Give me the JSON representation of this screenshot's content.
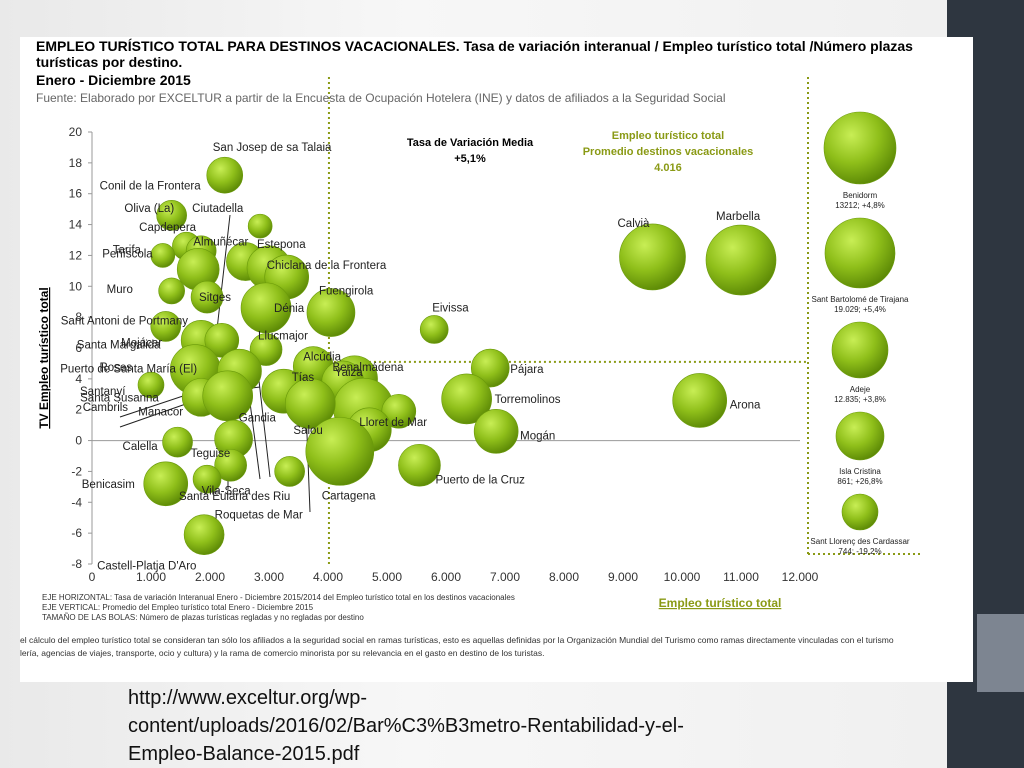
{
  "chart_data": {
    "type": "scatter",
    "title_lines": [
      "EMPLEO TURÍSTICO TOTAL PARA DESTINOS VACACIONALES. Tasa de variación interanual / Empleo turístico total /Número plazas",
      "turísticas por destino.",
      "Enero - Diciembre 2015"
    ],
    "source": "Fuente: Elaborado por EXCELTUR a partir de la Encuesta de Ocupación Hotelera (INE) y datos de afiliados a la Seguridad Social",
    "ylabel": "TV Empleo turístico total",
    "xlabel": "Empleo turístico total",
    "xlim": [
      0,
      12000
    ],
    "ylim": [
      -8,
      20
    ],
    "x_ticks": [
      "0",
      "1.000",
      "2.000",
      "3.000",
      "4.000",
      "5.000",
      "6.000",
      "7.000",
      "8.000",
      "9.000",
      "10.000",
      "11.000",
      "12.000"
    ],
    "y_ticks": [
      "20",
      "18",
      "16",
      "14",
      "12",
      "10",
      "8",
      "6",
      "4",
      "2",
      "0",
      "-2",
      "-4",
      "-6",
      "-8"
    ],
    "mean_variation": {
      "label": "Tasa de Variación Media",
      "value_label": "+5,1%",
      "value": 5.1
    },
    "mean_employment": {
      "label_1": "Empleo turístico total",
      "label_2": "Promedio destinos vacacionales",
      "value_label": "4.016",
      "value": 4016
    },
    "bubble_color": "#8fbf1a",
    "points": [
      {
        "name": "San Josep de sa Talaia",
        "x": 2250,
        "y": 17.2,
        "r": 18
      },
      {
        "name": "Conil de la Frontera",
        "x": 1350,
        "y": 14.6,
        "r": 15
      },
      {
        "name": "Ciutadella",
        "x": 2850,
        "y": 13.9,
        "r": 12
      },
      {
        "name": "Oliva (La)",
        "x": 1600,
        "y": 12.6,
        "r": 14
      },
      {
        "name": "Capdepera",
        "x": 1850,
        "y": 12.3,
        "r": 15
      },
      {
        "name": "Almuñécar",
        "x": 2600,
        "y": 11.6,
        "r": 19
      },
      {
        "name": "Tarifa",
        "x": 1200,
        "y": 12.0,
        "r": 12
      },
      {
        "name": "Estepona",
        "x": 3000,
        "y": 11.2,
        "r": 22
      },
      {
        "name": "Chiclana de la Frontera",
        "x": 3300,
        "y": 10.6,
        "r": 22
      },
      {
        "name": "Peñíscola",
        "x": 1800,
        "y": 11.1,
        "r": 21
      },
      {
        "name": "Sitges",
        "x": 1950,
        "y": 9.3,
        "r": 16
      },
      {
        "name": "Muro",
        "x": 1350,
        "y": 9.7,
        "r": 13
      },
      {
        "name": "Dénia",
        "x": 2950,
        "y": 8.6,
        "r": 25
      },
      {
        "name": "Fuengirola",
        "x": 4050,
        "y": 8.3,
        "r": 24
      },
      {
        "name": "Sant Antoni de Portmany",
        "x": 1250,
        "y": 7.4,
        "r": 15
      },
      {
        "name": "Mojácar",
        "x": 1850,
        "y": 6.5,
        "r": 20
      },
      {
        "name": "Santa Margalida",
        "x": 2200,
        "y": 6.5,
        "r": 17
      },
      {
        "name": "Eivissa",
        "x": 5800,
        "y": 7.2,
        "r": 14
      },
      {
        "name": "Llucmajor",
        "x": 2950,
        "y": 5.9,
        "r": 16
      },
      {
        "name": "Alcúdia",
        "x": 3750,
        "y": 4.8,
        "r": 20
      },
      {
        "name": "Puerto de Santa María (El)",
        "x": 1750,
        "y": 4.6,
        "r": 25
      },
      {
        "name": "Roses",
        "x": 2500,
        "y": 4.5,
        "r": 22
      },
      {
        "name": "Benalmádena",
        "x": 4450,
        "y": 4.0,
        "r": 23
      },
      {
        "name": "Pájara",
        "x": 6750,
        "y": 4.7,
        "r": 19
      },
      {
        "name": "Yaiza",
        "x": 4250,
        "y": 3.8,
        "r": 21
      },
      {
        "name": "Santanyí",
        "x": 1000,
        "y": 3.6,
        "r": 13
      },
      {
        "name": "Tías",
        "x": 3250,
        "y": 3.2,
        "r": 22
      },
      {
        "name": "Santa Susanna",
        "x": 1850,
        "y": 2.8,
        "r": 19
      },
      {
        "name": "Cambrils",
        "x": 2300,
        "y": 2.9,
        "r": 25
      },
      {
        "name": "Salou",
        "x": 4600,
        "y": 2.1,
        "r": 30
      },
      {
        "name": "Torremolinos",
        "x": 6350,
        "y": 2.7,
        "r": 25
      },
      {
        "name": "Arona",
        "x": 10300,
        "y": 2.6,
        "r": 27
      },
      {
        "name": "Manacor",
        "x": 3700,
        "y": 2.4,
        "r": 25
      },
      {
        "name": "Gandia",
        "x": 5200,
        "y": 1.9,
        "r": 17
      },
      {
        "name": "Mogán",
        "x": 6850,
        "y": 0.6,
        "r": 22
      },
      {
        "name": "Lloret de Mar",
        "x": 4700,
        "y": 0.7,
        "r": 22
      },
      {
        "name": "Calella",
        "x": 1450,
        "y": -0.1,
        "r": 15
      },
      {
        "name": "Teguise",
        "x": 2400,
        "y": 0.1,
        "r": 19
      },
      {
        "name": "Cartagena",
        "x": 4200,
        "y": -0.7,
        "r": 34
      },
      {
        "name": "Vila-Seca",
        "x": 2350,
        "y": -1.6,
        "r": 16
      },
      {
        "name": "Puerto de la Cruz",
        "x": 5550,
        "y": -1.6,
        "r": 21
      },
      {
        "name": "Benicasim",
        "x": 1250,
        "y": -2.8,
        "r": 22
      },
      {
        "name": "Santa Eularia des Riu",
        "x": 1950,
        "y": -2.5,
        "r": 14
      },
      {
        "name": "Roquetas de Mar",
        "x": 3350,
        "y": -2.0,
        "r": 15
      },
      {
        "name": "Castell-Platja D'Aro",
        "x": 1900,
        "y": -6.1,
        "r": 20
      },
      {
        "name": "Calvià",
        "x": 9500,
        "y": 11.9,
        "r": 33
      },
      {
        "name": "Marbella",
        "x": 11000,
        "y": 11.7,
        "r": 35
      }
    ],
    "size_legend": [
      {
        "label": "Benidorm",
        "detail": "13212; +4,8%",
        "r": 36
      },
      {
        "label": "Sant Bartolomé de Tirajana",
        "detail": "19.029; +5,4%",
        "r": 35
      },
      {
        "label": "Adeje",
        "detail": "12.835; +3,8%",
        "r": 28
      },
      {
        "label": "Isla Cristina",
        "detail": "861; +26,8%",
        "r": 24
      },
      {
        "label": "Sant Llorenç des Cardassar",
        "detail": "744; -19,2%",
        "r": 18
      }
    ],
    "notes": [
      "EJE HORIZONTAL: Tasa de variación Interanual  Enero - Diciembre 2015/2014 del Empleo turístico total  en los destinos vacacionales",
      "EJE VERTICAL: Promedio del Empleo turístico  total Enero - Diciembre 2015",
      "TAMAÑO DE LAS BOLAS: Número de plazas turísticas regladas  y no regladas por destino"
    ],
    "footnote_lines": [
      "el cálculo del empleo turístico total se consideran tan sólo los afiliados a la seguridad social en ramas turísticas, esto es aquellas definidas por la Organización Mundial del Turismo como ramas directamente vinculadas con el turismo",
      "lería, agencias de viajes, transporte, ocio y cultura) y la rama de comercio minorista por su relevancia en el gasto en destino de los turistas."
    ]
  },
  "source_url_lines": [
    "http://www.exceltur.org/wp-",
    "content/uploads/2016/02/Bar%C3%B3metro-Rentabilidad-y-el-",
    "Empleo-Balance-2015.pdf"
  ]
}
